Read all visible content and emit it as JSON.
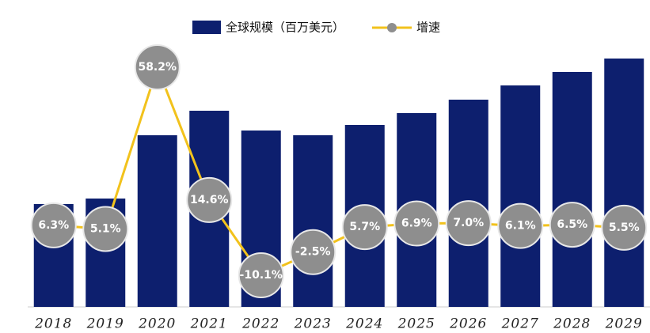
{
  "chart_data": {
    "type": "bar",
    "categories": [
      "2018",
      "2019",
      "2020",
      "2021",
      "2022",
      "2023",
      "2024",
      "2025",
      "2026",
      "2027",
      "2028",
      "2029"
    ],
    "series": [
      {
        "name": "全球规模（百万美元）",
        "type": "bar",
        "color": "#0d1f6e",
        "values": [
          130,
          137,
          217,
          248,
          223,
          217,
          230,
          245,
          262,
          280,
          297,
          314
        ]
      },
      {
        "name": "增速",
        "type": "line",
        "axis": "y2",
        "color": "#f2c21c",
        "marker_color": "#8e8e8e",
        "values": [
          6.3,
          5.1,
          58.2,
          14.6,
          -10.1,
          -2.5,
          5.7,
          6.9,
          7.0,
          6.1,
          6.5,
          5.5
        ],
        "value_labels": [
          "6.3%",
          "5.1%",
          "58.2%",
          "14.6%",
          "-10.1%",
          "-2.5%",
          "5.7%",
          "6.9%",
          "7.0%",
          "6.1%",
          "6.5%",
          "5.5%"
        ]
      }
    ]
  }
}
